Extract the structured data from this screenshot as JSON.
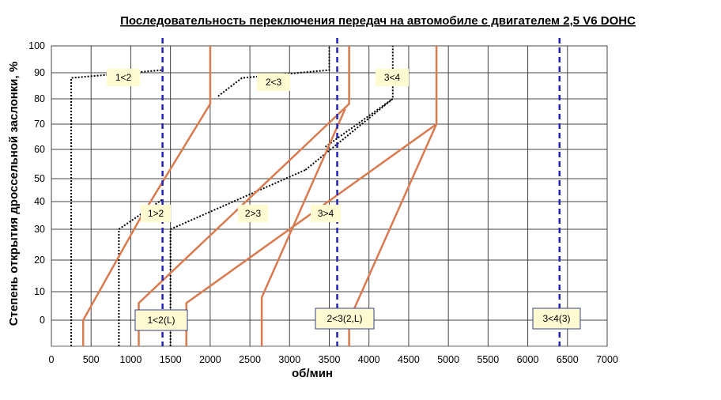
{
  "chart_data": {
    "type": "line",
    "title": "Последовательность переключения передач на автомобиле с двигателем 2,5 V6 DOHC",
    "xlabel": "об/мин",
    "ylabel": "Степень открытия дроссельной заслонки, %",
    "xlim": [
      0,
      7000
    ],
    "x_ticks": [
      "0",
      "500",
      "1000",
      "1500",
      "2000",
      "2500",
      "3000",
      "3500",
      "4000",
      "4500",
      "5000",
      "5500",
      "6000",
      "6500",
      "7000"
    ],
    "y_ticks": [
      "0",
      "10",
      "20",
      "30",
      "40",
      "50",
      "60",
      "70",
      "80",
      "90",
      "100"
    ],
    "grid": true,
    "upshift_color": "#d97a4f",
    "downshift_color": "#000000",
    "limit_color": "#2222bb",
    "upshift": [
      {
        "name": "1>2",
        "points": [
          [
            400,
            -9
          ],
          [
            400,
            0
          ],
          [
            1100,
            33
          ],
          [
            2000,
            78
          ],
          [
            2000,
            100
          ]
        ]
      },
      {
        "name": "2>3",
        "points": [
          [
            1100,
            -9
          ],
          [
            1100,
            6
          ],
          [
            3750,
            78
          ],
          [
            3750,
            100
          ]
        ]
      },
      {
        "name": "3>4",
        "points": [
          [
            1700,
            -9
          ],
          [
            1700,
            6
          ],
          [
            4850,
            70
          ],
          [
            4850,
            100
          ]
        ]
      },
      {
        "name": "",
        "points": [
          [
            2650,
            -9
          ],
          [
            2650,
            8
          ],
          [
            3700,
            76
          ]
        ]
      },
      {
        "name": "",
        "points": [
          [
            3750,
            -9
          ],
          [
            3750,
            0
          ],
          [
            4850,
            70
          ]
        ]
      }
    ],
    "downshift": [
      {
        "name": "1<2",
        "points": [
          [
            250,
            -9
          ],
          [
            250,
            88
          ],
          [
            1400,
            91
          ]
        ]
      },
      {
        "name": "",
        "points": [
          [
            850,
            -9
          ],
          [
            850,
            30
          ],
          [
            1400,
            41
          ]
        ]
      },
      {
        "name": "2<3",
        "points": [
          [
            1500,
            -9
          ],
          [
            1500,
            30
          ],
          [
            3200,
            53
          ]
        ]
      },
      {
        "name": "",
        "points": [
          [
            2100,
            81
          ],
          [
            2400,
            88
          ],
          [
            3500,
            91
          ],
          [
            3500,
            100
          ]
        ]
      },
      {
        "name": "3<4",
        "points": [
          [
            3200,
            53
          ],
          [
            4300,
            80
          ],
          [
            4300,
            100
          ]
        ]
      },
      {
        "name": "",
        "points": [
          [
            3450,
            61
          ],
          [
            4300,
            80
          ]
        ]
      }
    ],
    "limits": [
      {
        "name": "1<2(L)",
        "x": 1400
      },
      {
        "name": "2<3(2,L)",
        "x": 3600
      },
      {
        "name": "3<4(3)",
        "x": 6400
      }
    ],
    "shift_labels": [
      "1>2",
      "2>3",
      "3>4"
    ]
  }
}
